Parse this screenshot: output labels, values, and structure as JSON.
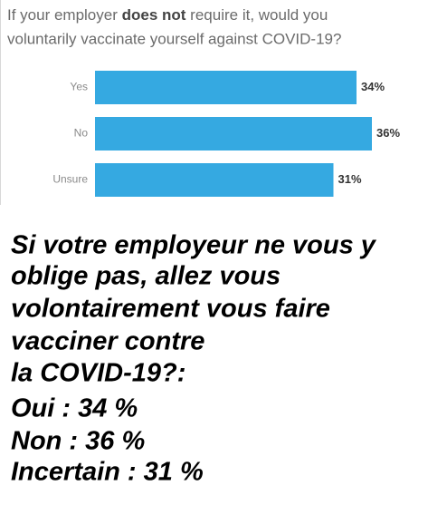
{
  "chart_data": {
    "type": "bar",
    "orientation": "horizontal",
    "title_parts": [
      "If your employer ",
      "does not",
      " require it, would you",
      "voluntarily vaccinate yourself against COVID-19?"
    ],
    "categories": [
      "Yes",
      "No",
      "Unsure"
    ],
    "values": [
      34,
      36,
      31
    ],
    "value_labels": [
      "34%",
      "36%",
      "31%"
    ],
    "color": "#35a9e1"
  },
  "caption": {
    "lines": [
      "Si votre employeur ne vous y",
      "oblige pas, allez vous",
      "volontairement vous faire",
      "vacciner contre",
      "la COVID-19?:",
      "Oui : 34 %",
      "Non : 36 %",
      "Incertain : 31 %"
    ]
  }
}
